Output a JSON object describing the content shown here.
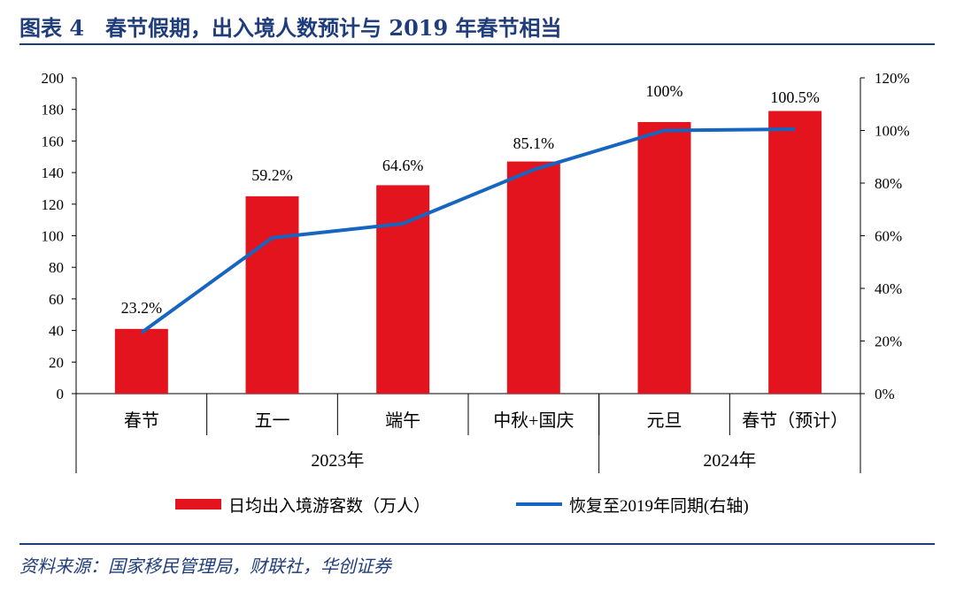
{
  "header": {
    "title": "图表 4　春节假期，出入境人数预计与 2019 年春节相当"
  },
  "footer": {
    "source": "资料来源：国家移民管理局，财联社，华创证券"
  },
  "chart_data": {
    "type": "bar",
    "categories": [
      "春节",
      "五一",
      "端午",
      "中秋+国庆",
      "元旦",
      "春节（预计）"
    ],
    "groups": [
      {
        "label": "2023年",
        "categories": [
          "春节",
          "五一",
          "端午",
          "中秋+国庆"
        ]
      },
      {
        "label": "2024年",
        "categories": [
          "元旦",
          "春节（预计）"
        ]
      }
    ],
    "series": [
      {
        "name": "日均出入境游客数（万人）",
        "type": "bar",
        "axis": "left",
        "color": "#e3141e",
        "values": [
          41,
          125,
          132,
          147,
          172,
          179
        ]
      },
      {
        "name": "恢复至2019年同期(右轴)",
        "type": "line",
        "axis": "right",
        "color": "#1666c1",
        "values": [
          0.232,
          0.592,
          0.646,
          0.851,
          1.0,
          1.005
        ],
        "labels": [
          "23.2%",
          "59.2%",
          "64.6%",
          "85.1%",
          "100%",
          "100.5%"
        ]
      }
    ],
    "y_left": {
      "ylim": [
        0,
        200
      ],
      "ticks": [
        "0",
        "20",
        "40",
        "60",
        "80",
        "100",
        "120",
        "140",
        "160",
        "180",
        "200"
      ]
    },
    "y_right": {
      "ylim": [
        0,
        1.2
      ],
      "ticks": [
        "0%",
        "20%",
        "40%",
        "60%",
        "80%",
        "100%",
        "120%"
      ]
    },
    "legend_position": "bottom",
    "grid": false
  }
}
